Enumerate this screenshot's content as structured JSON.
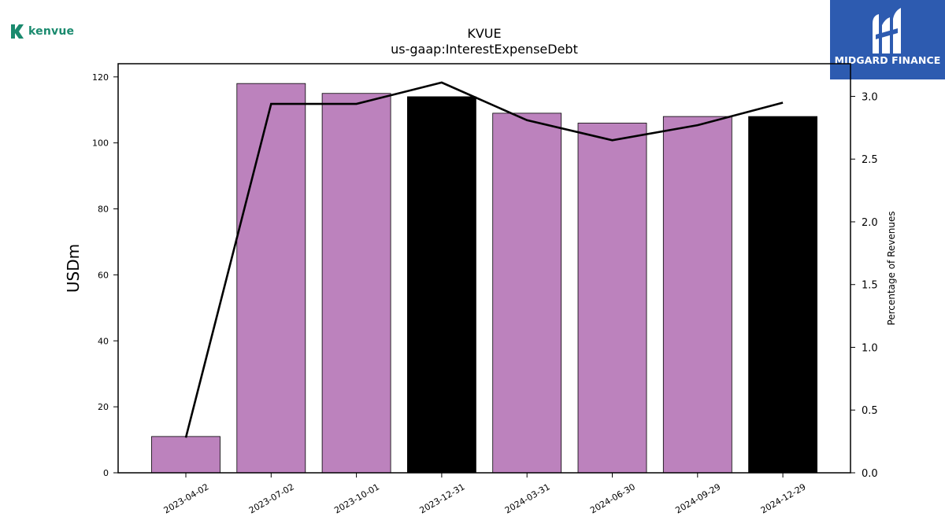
{
  "logos": {
    "left_brand": "kenvue",
    "right_brand": "MIDGARD FINANCE",
    "left_color": "#1a8a6e",
    "right_color": "#2d5bb0"
  },
  "chart_data": {
    "type": "bar",
    "title": "KVUE",
    "subtitle": "us-gaap:InterestExpenseDebt",
    "ylabel": "USDm",
    "y2label": "Percentage of Revenues",
    "categories": [
      "2023-04-02",
      "2023-07-02",
      "2023-10-01",
      "2023-12-31",
      "2024-03-31",
      "2024-06-30",
      "2024-09-29",
      "2024-12-29"
    ],
    "series": [
      {
        "type": "bar",
        "axis": "left",
        "values": [
          11,
          118,
          115,
          114,
          109,
          106,
          108,
          108
        ],
        "colors": [
          "#bc82bd",
          "#bc82bd",
          "#bc82bd",
          "#000000",
          "#bc82bd",
          "#bc82bd",
          "#bc82bd",
          "#000000"
        ]
      },
      {
        "type": "line",
        "axis": "right",
        "color": "#000000",
        "values": [
          0.28,
          2.94,
          2.94,
          3.11,
          2.81,
          2.65,
          2.77,
          2.95
        ]
      }
    ],
    "ylim": [
      0,
      124
    ],
    "y2lim": [
      0,
      3.26
    ],
    "yticks": [
      "0",
      "20",
      "40",
      "60",
      "80",
      "100",
      "120"
    ],
    "y2ticks": [
      "0.0",
      "0.5",
      "1.0",
      "1.5",
      "2.0",
      "2.5",
      "3.0"
    ],
    "grid": false
  }
}
